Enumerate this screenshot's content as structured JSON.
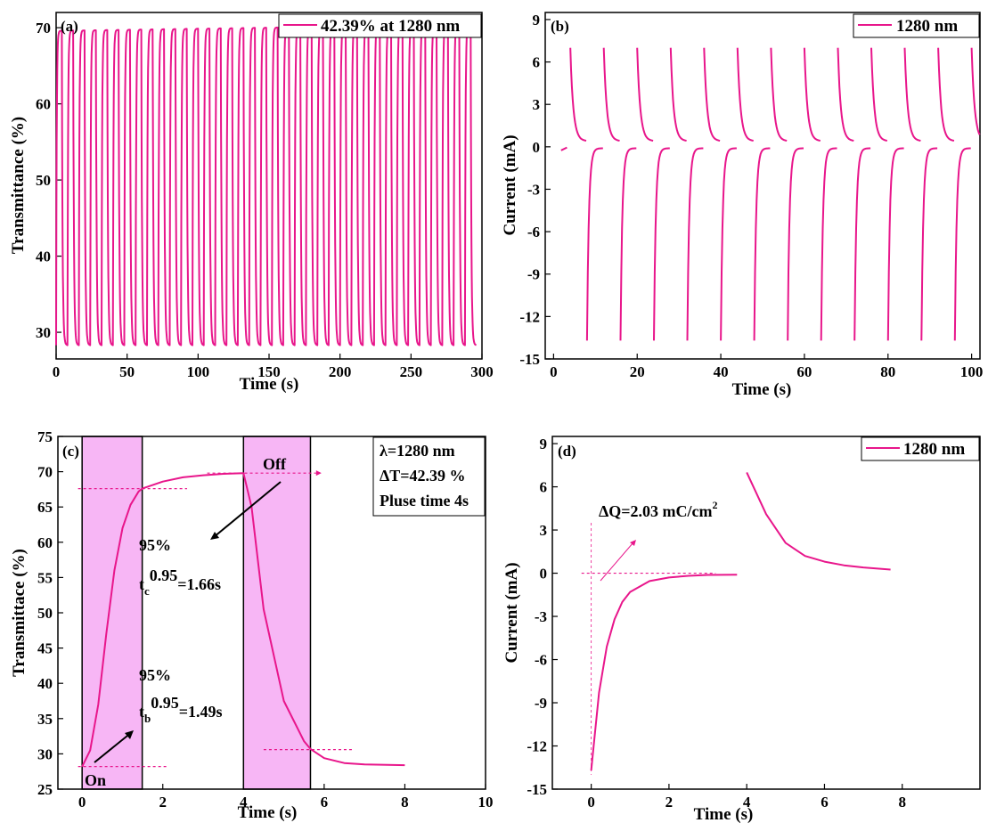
{
  "chart_data": [
    {
      "type": "line",
      "panel_label": "(a)",
      "xlabel": "Time (s)",
      "ylabel": "Transmittance (%)",
      "xlim": [
        0,
        300
      ],
      "ylim": [
        26.5,
        72
      ],
      "xticks": [
        0,
        50,
        100,
        150,
        200,
        250,
        300
      ],
      "yticks": [
        30,
        40,
        50,
        60,
        70
      ],
      "legend": "42.39% at 1280 nm",
      "legend_position": "top-right",
      "series": [
        {
          "period_s": 8,
          "cycles": 37,
          "min_value": 28.3,
          "max_value_start": 69.6,
          "max_value_end": 70.4
        }
      ]
    },
    {
      "type": "line",
      "panel_label": "(b)",
      "xlabel": "Time (s)",
      "ylabel": "Current (mA)",
      "xlim": [
        -2,
        102
      ],
      "ylim": [
        -15,
        9.5
      ],
      "xticks": [
        0,
        20,
        40,
        60,
        80,
        100
      ],
      "yticks": [
        9,
        6,
        3,
        0,
        -3,
        -6,
        -9,
        -12,
        -15
      ],
      "legend": "1280 nm",
      "legend_position": "top-right",
      "series": [
        {
          "period_s": 8,
          "anodic_peak": 7.0,
          "cathodic_peak": -13.7,
          "anodic_end": 0.4,
          "cathodic_end": -0.1
        }
      ]
    },
    {
      "type": "line",
      "panel_label": "(c)",
      "xlabel": "Time (s)",
      "ylabel": "Transmittace (%)",
      "xlim": [
        -0.6,
        10
      ],
      "ylim": [
        25,
        75
      ],
      "xticks": [
        0,
        2,
        4,
        6,
        8,
        10
      ],
      "yticks": [
        25,
        30,
        35,
        40,
        45,
        50,
        55,
        60,
        65,
        70,
        75
      ],
      "shaded_regions": [
        [
          0,
          1.49
        ],
        [
          4,
          5.66
        ]
      ],
      "series": [
        {
          "x": [
            0,
            0.2,
            0.4,
            0.6,
            0.8,
            1.0,
            1.2,
            1.4,
            1.49,
            2,
            2.5,
            3,
            3.5,
            4,
            4.2,
            4.5,
            5,
            5.5,
            5.66,
            6,
            6.5,
            7,
            8
          ],
          "y": [
            28.2,
            30.5,
            37,
            47,
            56,
            62,
            65.3,
            67.2,
            67.6,
            68.6,
            69.2,
            69.5,
            69.7,
            69.8,
            65,
            50.5,
            37.5,
            31.8,
            30.7,
            29.4,
            28.7,
            28.5,
            28.4
          ]
        }
      ],
      "annotations": {
        "info": [
          "λ=1280 nm",
          "ΔT=42.39 %",
          "Pluse time 4s"
        ],
        "on": "On",
        "off": "Off",
        "coloring_pct": "95%",
        "coloring_base": "t",
        "coloring_sub": "c",
        "coloring_sup": "0.95",
        "coloring_val": "=1.66s",
        "bleaching_pct": "95%",
        "bleaching_base": "t",
        "bleaching_sub": "b",
        "bleaching_sup": "0.95",
        "bleaching_val": "=1.49s"
      }
    },
    {
      "type": "line",
      "panel_label": "(d)",
      "xlabel": "Time (s)",
      "ylabel": "Current (mA)",
      "xlim": [
        -1,
        10
      ],
      "ylim": [
        -15,
        9.5
      ],
      "xticks": [
        0,
        2,
        4,
        6,
        8
      ],
      "yticks": [
        9,
        6,
        3,
        0,
        -3,
        -6,
        -9,
        -12,
        -15
      ],
      "legend": "1280 nm",
      "legend_position": "top-right",
      "annotation_main": "ΔQ=2.03 mC/cm",
      "annotation_sup": "2",
      "series": [
        {
          "x": [
            0,
            0.2,
            0.4,
            0.6,
            0.8,
            1.0,
            1.5,
            2,
            2.5,
            3,
            3.75
          ],
          "y": [
            -13.7,
            -8.3,
            -5.1,
            -3.2,
            -2.0,
            -1.3,
            -0.55,
            -0.3,
            -0.18,
            -0.12,
            -0.1
          ]
        },
        {
          "x": [
            4,
            4.5,
            5,
            5.5,
            6,
            6.5,
            7,
            7.7
          ],
          "y": [
            7.0,
            4.1,
            2.1,
            1.2,
            0.8,
            0.55,
            0.4,
            0.25
          ]
        }
      ]
    }
  ]
}
